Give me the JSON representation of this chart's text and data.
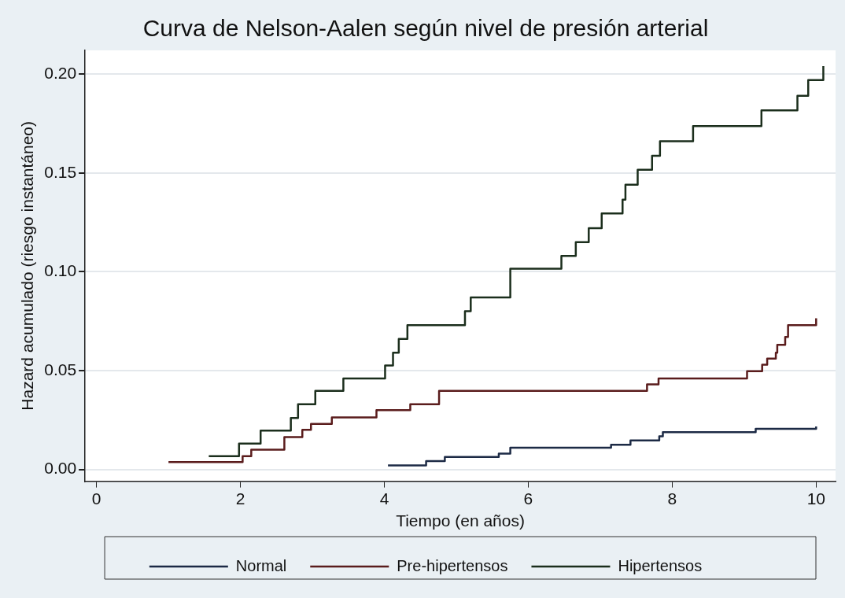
{
  "chart_data": {
    "type": "step",
    "title": "Curva de Nelson-Aalen según nivel de presión arterial",
    "xlabel": "Tiempo (en años)",
    "ylabel": "Hazard acumulado (riesgo instantáneo)",
    "xlim": [
      -0.16,
      10.27
    ],
    "xticks": [
      0,
      2,
      4,
      6,
      8,
      10
    ],
    "ylim": [
      -0.006,
      0.212
    ],
    "yticks": [
      {
        "value": 0,
        "label": "0.00"
      },
      {
        "value": 0.05,
        "label": "0.05"
      },
      {
        "value": 0.1,
        "label": "0.10"
      },
      {
        "value": 0.15,
        "label": "0.15"
      },
      {
        "value": 0.2,
        "label": "0.20"
      }
    ],
    "grid": "y",
    "legend": "bottom",
    "marker": "none",
    "line_style": "solid",
    "series": [
      {
        "name": "Normal",
        "color": "#1c2a45",
        "x": [
          4.05,
          4.58,
          4.84,
          5.59,
          5.75,
          7.15,
          7.42,
          7.82,
          7.87,
          9.16,
          10.0
        ],
        "values": [
          0.002,
          0.0042,
          0.0063,
          0.008,
          0.011,
          0.0125,
          0.0146,
          0.0167,
          0.0188,
          0.0205,
          0.0217
        ]
      },
      {
        "name": "Pre-hipertensos",
        "color": "#5a1c1c",
        "x": [
          1.0,
          2.03,
          2.15,
          2.61,
          2.86,
          2.98,
          3.27,
          3.89,
          4.36,
          4.76,
          7.65,
          7.81,
          9.04,
          9.25,
          9.32,
          9.44,
          9.46,
          9.57,
          9.61,
          10.0
        ],
        "values": [
          0.0037,
          0.0067,
          0.01,
          0.0163,
          0.02,
          0.023,
          0.0263,
          0.03,
          0.033,
          0.0397,
          0.043,
          0.046,
          0.0497,
          0.053,
          0.056,
          0.059,
          0.063,
          0.067,
          0.073,
          0.0764
        ]
      },
      {
        "name": "Hipertensos",
        "color": "#1b2e1c",
        "x": [
          1.56,
          1.98,
          2.28,
          2.7,
          2.8,
          3.04,
          3.43,
          4.01,
          4.12,
          4.2,
          4.32,
          5.12,
          5.2,
          5.75,
          6.46,
          6.66,
          6.84,
          7.02,
          7.31,
          7.35,
          7.52,
          7.72,
          7.83,
          8.29,
          9.24,
          9.74,
          9.89,
          10.1
        ],
        "values": [
          0.0067,
          0.013,
          0.0196,
          0.026,
          0.033,
          0.0397,
          0.046,
          0.0526,
          0.059,
          0.066,
          0.073,
          0.08,
          0.087,
          0.1015,
          0.108,
          0.115,
          0.122,
          0.1295,
          0.1365,
          0.144,
          0.1516,
          0.1587,
          0.166,
          0.1737,
          0.1816,
          0.189,
          0.197,
          0.204
        ]
      }
    ]
  }
}
